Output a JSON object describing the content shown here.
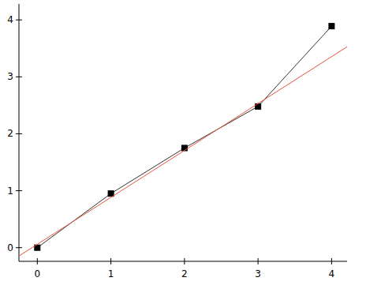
{
  "chart_data": {
    "type": "line",
    "series": [
      {
        "type": "line",
        "color": "#333333",
        "marker": "square",
        "line_style": "solid",
        "x": [
          0,
          1,
          2,
          3,
          4
        ],
        "values": [
          0,
          0.95,
          1.75,
          2.48,
          3.89
        ]
      },
      {
        "type": "line",
        "color": "#e8553e",
        "marker": "none",
        "line_style": "solid",
        "x": [
          -0.25,
          4.21
        ],
        "values": [
          -0.147,
          3.528
        ]
      }
    ],
    "xlim": [
      -0.25,
      4.21
    ],
    "ylim": [
      -0.24,
      4.28
    ],
    "xticks": [
      0,
      1,
      2,
      3,
      4
    ],
    "yticks": [
      0,
      1,
      2,
      3,
      4
    ],
    "grid": false
  }
}
